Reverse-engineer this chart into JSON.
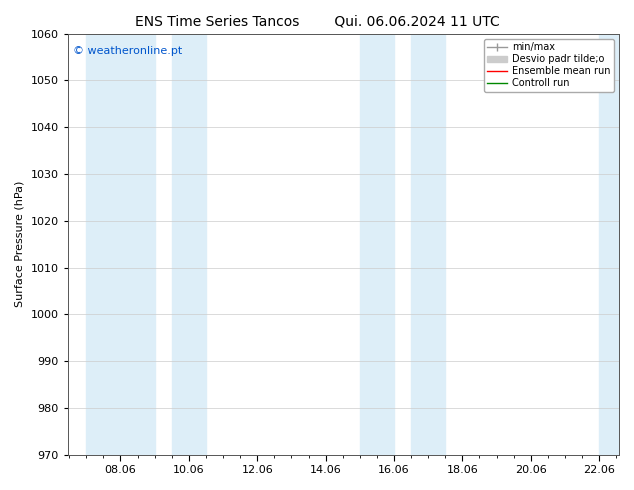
{
  "title_left": "ENS Time Series Tancos",
  "title_right": "Qui. 06.06.2024 11 UTC",
  "ylabel": "Surface Pressure (hPa)",
  "ylim": [
    970,
    1060
  ],
  "yticks": [
    970,
    980,
    990,
    1000,
    1010,
    1020,
    1030,
    1040,
    1050,
    1060
  ],
  "xtick_positions": [
    8,
    10,
    12,
    14,
    16,
    18,
    20,
    22
  ],
  "xtick_labels": [
    "08.06",
    "10.06",
    "12.06",
    "14.06",
    "16.06",
    "18.06",
    "20.06",
    "22.06"
  ],
  "xlim": [
    6.458,
    22.58
  ],
  "shaded_regions": [
    {
      "x_start": 7.0,
      "x_end": 9.0,
      "color": "#ddeef8"
    },
    {
      "x_start": 9.5,
      "x_end": 10.5,
      "color": "#ddeef8"
    },
    {
      "x_start": 15.0,
      "x_end": 16.0,
      "color": "#ddeef8"
    },
    {
      "x_start": 16.5,
      "x_end": 17.5,
      "color": "#ddeef8"
    },
    {
      "x_start": 22.0,
      "x_end": 22.58,
      "color": "#ddeef8"
    }
  ],
  "watermark_text": "© weatheronline.pt",
  "watermark_color": "#0055cc",
  "background_color": "#ffffff",
  "plot_bg_color": "#ffffff",
  "legend_entries": [
    {
      "label": "min/max",
      "color": "#999999",
      "linewidth": 1.0,
      "linestyle": "-"
    },
    {
      "label": "Desvio padr tilde;o",
      "color": "#cccccc",
      "linewidth": 5,
      "linestyle": "-"
    },
    {
      "label": "Ensemble mean run",
      "color": "#ff0000",
      "linewidth": 1.0,
      "linestyle": "-"
    },
    {
      "label": "Controll run",
      "color": "#008800",
      "linewidth": 1.0,
      "linestyle": "-"
    }
  ],
  "grid_color": "#cccccc",
  "tick_color": "#000000",
  "font_size": 8,
  "title_font_size": 10,
  "watermark_font_size": 8
}
